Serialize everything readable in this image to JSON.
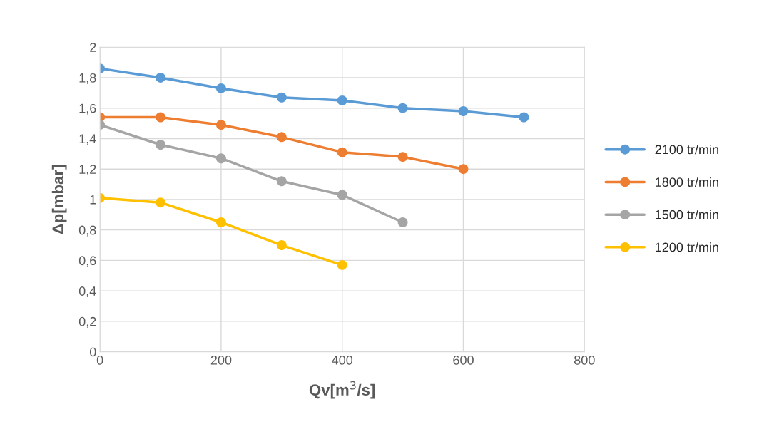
{
  "chart_data": {
    "type": "line",
    "xlabel": "Qv[m$^{3}$/s]",
    "ylabel": "Δp[mbar]",
    "xlim": [
      0,
      800
    ],
    "xticks": [
      0,
      200,
      400,
      600,
      800
    ],
    "ylim": [
      0,
      2
    ],
    "yticks": [
      0,
      {
        "value": 0.2,
        "label": "0,2"
      },
      {
        "value": 0.4,
        "label": "0,4"
      },
      {
        "value": 0.6,
        "label": "0,6"
      },
      {
        "value": 0.8,
        "label": "0,8"
      },
      1,
      {
        "value": 1.2,
        "label": "1,2"
      },
      {
        "value": 1.4,
        "label": "1,4"
      },
      {
        "value": 1.6,
        "label": "1,6"
      },
      {
        "value": 1.8,
        "label": "1,8"
      },
      2
    ],
    "grid": true,
    "legend": "right",
    "marker": "circle",
    "line_style": "solid",
    "series": [
      {
        "name": "2100 tr/min",
        "color": "#5b9bd5",
        "x": [
          0,
          100,
          200,
          300,
          400,
          500,
          600,
          700
        ],
        "values": [
          1.86,
          1.8,
          1.73,
          1.67,
          1.65,
          1.6,
          1.58,
          1.54
        ]
      },
      {
        "name": "1800 tr/min",
        "color": "#ed7d31",
        "x": [
          0,
          100,
          200,
          300,
          400,
          500,
          600
        ],
        "values": [
          1.54,
          1.54,
          1.49,
          1.41,
          1.31,
          1.28,
          1.2
        ]
      },
      {
        "name": "1500 tr/min",
        "color": "#a5a5a5",
        "x": [
          0,
          100,
          200,
          300,
          400,
          500
        ],
        "values": [
          1.49,
          1.36,
          1.27,
          1.12,
          1.03,
          0.85
        ]
      },
      {
        "name": "1200 tr/min",
        "color": "#ffc000",
        "x": [
          0,
          100,
          200,
          300,
          400
        ],
        "values": [
          1.01,
          0.98,
          0.85,
          0.7,
          0.57
        ]
      }
    ]
  }
}
